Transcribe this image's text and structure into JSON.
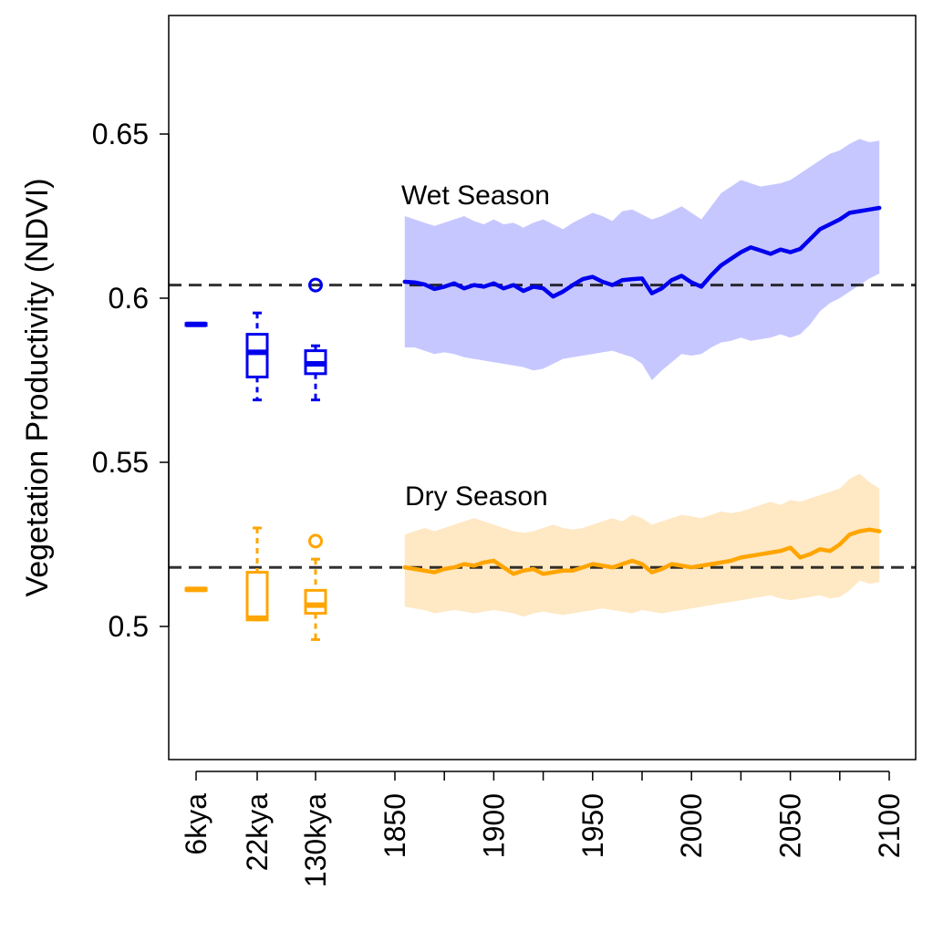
{
  "chart_data": {
    "type": "line",
    "ylabel": "Vegetation Productivity (NDVI)",
    "ylim": [
      0.46,
      0.685
    ],
    "yticks": [
      0.5,
      0.55,
      0.6,
      0.65
    ],
    "ytick_labels": [
      "0.5",
      "0.55",
      "0.6",
      "0.65"
    ],
    "categorical_ticks": [
      "6kya",
      "22kya",
      "130kya"
    ],
    "year_ticks": [
      1850,
      1875,
      1900,
      1925,
      1950,
      1975,
      2000,
      2025,
      2050,
      2075,
      2100
    ],
    "year_tick_labels": [
      "1850",
      "1900",
      "1950",
      "2000",
      "2050",
      "2100"
    ],
    "reference_lines": [
      {
        "name": "wet-reference",
        "y": 0.604
      },
      {
        "name": "dry-reference",
        "y": 0.518
      }
    ],
    "series": [
      {
        "name": "Wet Season",
        "label": "Wet Season",
        "color": "#0000ee",
        "band_color": "#c7c7ff",
        "x": [
          1855,
          1860,
          1865,
          1870,
          1875,
          1880,
          1885,
          1890,
          1895,
          1900,
          1905,
          1910,
          1915,
          1920,
          1925,
          1930,
          1935,
          1940,
          1945,
          1950,
          1955,
          1960,
          1965,
          1970,
          1975,
          1980,
          1985,
          1990,
          1995,
          2000,
          2005,
          2010,
          2015,
          2020,
          2025,
          2030,
          2035,
          2040,
          2045,
          2050,
          2055,
          2060,
          2065,
          2070,
          2075,
          2080,
          2085,
          2090,
          2095
        ],
        "mean": [
          0.605,
          0.6048,
          0.6042,
          0.6028,
          0.6035,
          0.6045,
          0.603,
          0.604,
          0.6035,
          0.6045,
          0.603,
          0.604,
          0.6022,
          0.6035,
          0.603,
          0.6005,
          0.602,
          0.604,
          0.6058,
          0.6065,
          0.605,
          0.604,
          0.6055,
          0.6058,
          0.606,
          0.6015,
          0.603,
          0.6055,
          0.6068,
          0.6048,
          0.6035,
          0.607,
          0.61,
          0.612,
          0.614,
          0.6155,
          0.6145,
          0.6135,
          0.6148,
          0.614,
          0.615,
          0.618,
          0.621,
          0.6225,
          0.624,
          0.626,
          0.6265,
          0.627,
          0.6275
        ],
        "lower": [
          0.585,
          0.585,
          0.584,
          0.583,
          0.5835,
          0.583,
          0.582,
          0.5815,
          0.581,
          0.5805,
          0.58,
          0.5795,
          0.579,
          0.578,
          0.5785,
          0.58,
          0.5815,
          0.582,
          0.5825,
          0.583,
          0.5835,
          0.584,
          0.583,
          0.582,
          0.58,
          0.575,
          0.578,
          0.5805,
          0.583,
          0.5825,
          0.583,
          0.585,
          0.5865,
          0.587,
          0.588,
          0.587,
          0.5875,
          0.588,
          0.589,
          0.588,
          0.589,
          0.592,
          0.596,
          0.5985,
          0.6,
          0.602,
          0.604,
          0.606,
          0.6075
        ],
        "upper": [
          0.625,
          0.624,
          0.623,
          0.622,
          0.623,
          0.624,
          0.625,
          0.6235,
          0.6225,
          0.624,
          0.6225,
          0.623,
          0.6215,
          0.623,
          0.624,
          0.6225,
          0.621,
          0.623,
          0.6245,
          0.626,
          0.625,
          0.6235,
          0.6265,
          0.627,
          0.6255,
          0.624,
          0.625,
          0.6265,
          0.628,
          0.626,
          0.624,
          0.628,
          0.632,
          0.634,
          0.636,
          0.635,
          0.634,
          0.6345,
          0.635,
          0.636,
          0.638,
          0.64,
          0.642,
          0.644,
          0.645,
          0.647,
          0.6485,
          0.6475,
          0.648
        ]
      },
      {
        "name": "Dry Season",
        "label": "Dry Season",
        "color": "#ffa500",
        "band_color": "#ffe8c4",
        "x": [
          1855,
          1860,
          1865,
          1870,
          1875,
          1880,
          1885,
          1890,
          1895,
          1900,
          1905,
          1910,
          1915,
          1920,
          1925,
          1930,
          1935,
          1940,
          1945,
          1950,
          1955,
          1960,
          1965,
          1970,
          1975,
          1980,
          1985,
          1990,
          1995,
          2000,
          2005,
          2010,
          2015,
          2020,
          2025,
          2030,
          2035,
          2040,
          2045,
          2050,
          2055,
          2060,
          2065,
          2070,
          2075,
          2080,
          2085,
          2090,
          2095
        ],
        "mean": [
          0.518,
          0.5175,
          0.517,
          0.5165,
          0.5175,
          0.518,
          0.519,
          0.5185,
          0.5195,
          0.52,
          0.518,
          0.516,
          0.517,
          0.5175,
          0.516,
          0.5165,
          0.517,
          0.517,
          0.518,
          0.519,
          0.5185,
          0.518,
          0.519,
          0.52,
          0.519,
          0.5165,
          0.5175,
          0.519,
          0.5185,
          0.518,
          0.5185,
          0.519,
          0.5195,
          0.52,
          0.521,
          0.5215,
          0.522,
          0.5225,
          0.523,
          0.524,
          0.521,
          0.522,
          0.5235,
          0.523,
          0.525,
          0.528,
          0.529,
          0.5295,
          0.529
        ],
        "lower": [
          0.506,
          0.5055,
          0.505,
          0.504,
          0.5045,
          0.505,
          0.5045,
          0.504,
          0.5045,
          0.505,
          0.5045,
          0.504,
          0.503,
          0.504,
          0.5045,
          0.504,
          0.5035,
          0.504,
          0.5045,
          0.505,
          0.5055,
          0.505,
          0.5045,
          0.504,
          0.505,
          0.5045,
          0.504,
          0.5045,
          0.505,
          0.5055,
          0.506,
          0.5065,
          0.507,
          0.5075,
          0.508,
          0.5085,
          0.509,
          0.5095,
          0.5085,
          0.508,
          0.5085,
          0.509,
          0.5095,
          0.5085,
          0.509,
          0.511,
          0.514,
          0.513,
          0.5135
        ],
        "upper": [
          0.528,
          0.529,
          0.53,
          0.529,
          0.53,
          0.531,
          0.532,
          0.533,
          0.532,
          0.531,
          0.53,
          0.529,
          0.5285,
          0.529,
          0.53,
          0.531,
          0.53,
          0.5295,
          0.53,
          0.531,
          0.532,
          0.533,
          0.532,
          0.534,
          0.533,
          0.531,
          0.532,
          0.533,
          0.534,
          0.5335,
          0.533,
          0.534,
          0.535,
          0.5345,
          0.535,
          0.536,
          0.537,
          0.538,
          0.537,
          0.5385,
          0.538,
          0.539,
          0.54,
          0.541,
          0.542,
          0.545,
          0.5465,
          0.544,
          0.542
        ]
      }
    ],
    "boxplots": [
      {
        "group": "wet",
        "category": "6kya",
        "color": "#0000ee",
        "whisker_low": 0.5917,
        "q1": 0.5917,
        "median": 0.592,
        "q3": 0.5923,
        "whisker_high": 0.5923,
        "outliers": []
      },
      {
        "group": "wet",
        "category": "22kya",
        "color": "#0000ee",
        "whisker_low": 0.569,
        "q1": 0.576,
        "median": 0.5835,
        "q3": 0.589,
        "whisker_high": 0.5955,
        "outliers": []
      },
      {
        "group": "wet",
        "category": "130kya",
        "color": "#0000ee",
        "whisker_low": 0.569,
        "q1": 0.577,
        "median": 0.58,
        "q3": 0.584,
        "whisker_high": 0.5855,
        "outliers": [
          0.604
        ]
      },
      {
        "group": "dry",
        "category": "6kya",
        "color": "#ffa500",
        "whisker_low": 0.511,
        "q1": 0.511,
        "median": 0.5113,
        "q3": 0.5116,
        "whisker_high": 0.5116,
        "outliers": []
      },
      {
        "group": "dry",
        "category": "22kya",
        "color": "#ffa500",
        "whisker_low": 0.502,
        "q1": 0.502,
        "median": 0.5025,
        "q3": 0.5165,
        "whisker_high": 0.53,
        "outliers": []
      },
      {
        "group": "dry",
        "category": "130kya",
        "color": "#ffa500",
        "whisker_low": 0.496,
        "q1": 0.504,
        "median": 0.5065,
        "q3": 0.511,
        "whisker_high": 0.5205,
        "outliers": [
          0.526
        ]
      }
    ]
  }
}
